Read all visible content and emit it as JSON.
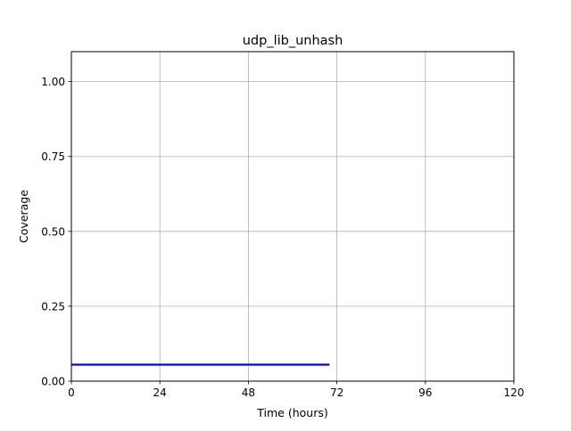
{
  "chart_data": {
    "type": "line",
    "title": "udp_lib_unhash",
    "xlabel": "Time (hours)",
    "ylabel": "Coverage",
    "xlim": [
      0,
      120
    ],
    "ylim": [
      0,
      1.1
    ],
    "xticks": [
      0,
      24,
      48,
      72,
      96,
      120
    ],
    "xtick_labels": [
      "0",
      "24",
      "48",
      "72",
      "96",
      "120"
    ],
    "yticks": [
      0,
      0.25,
      0.5,
      0.75,
      1.0
    ],
    "ytick_labels": [
      "0.00",
      "0.25",
      "0.50",
      "0.75",
      "1.00"
    ],
    "grid": true,
    "series": [
      {
        "color": "#0000ff",
        "x": [
          0,
          70
        ],
        "y": [
          0.055,
          0.055
        ]
      }
    ]
  }
}
